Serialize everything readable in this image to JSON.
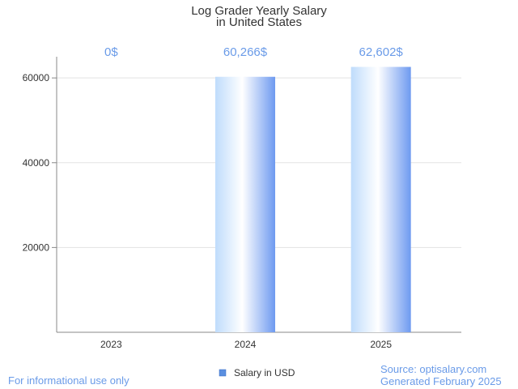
{
  "chart_data": {
    "type": "bar",
    "title_line1": "Log Grader Yearly Salary",
    "title_line2": "in United States",
    "xlabel": "",
    "ylabel": "",
    "categories": [
      "2023",
      "2024",
      "2025"
    ],
    "series": [
      {
        "name": "Salary in USD",
        "values": [
          0,
          60266,
          62602
        ],
        "labels": [
          "0$",
          "60,266$",
          "62,602$"
        ]
      }
    ],
    "ylim": [
      0,
      65000
    ],
    "yticks": [
      20000,
      40000,
      60000
    ],
    "grid": true,
    "legend": "bottom-center"
  },
  "footer": {
    "left": "For informational use only",
    "source": "Source: optisalary.com",
    "generated": "Generated February 2025"
  },
  "colors": {
    "label": "#6a9be8",
    "bar_light": "#ffffff",
    "bar_mid": "#a9cdfa",
    "bar_dark": "#6e9af0",
    "legend_swatch": "#5b8fe0",
    "grid": "#e3e3e3",
    "axis": "#888888"
  }
}
